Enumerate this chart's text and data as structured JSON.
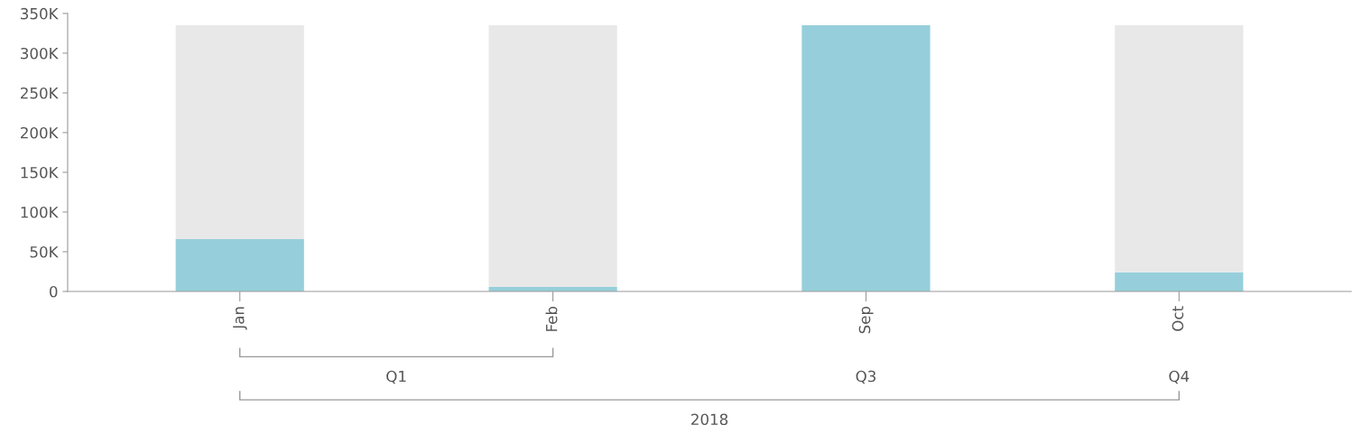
{
  "chart_data": {
    "type": "bar",
    "stacked": true,
    "categories": [
      "Jan",
      "Feb",
      "Sep",
      "Oct"
    ],
    "series": [
      {
        "color": "#96cfdb",
        "values": [
          66000,
          6000,
          335000,
          24000
        ]
      },
      {
        "color": "#e8e8e8",
        "values": [
          269000,
          329000,
          0,
          311000
        ]
      }
    ],
    "ylim": [
      0,
      350000
    ],
    "yticks": [
      {
        "value": 0,
        "label": "0"
      },
      {
        "value": 50000,
        "label": "50K"
      },
      {
        "value": 100000,
        "label": "100K"
      },
      {
        "value": 150000,
        "label": "150K"
      },
      {
        "value": 200000,
        "label": "200K"
      },
      {
        "value": 250000,
        "label": "250K"
      },
      {
        "value": 300000,
        "label": "300K"
      },
      {
        "value": 350000,
        "label": "350K"
      }
    ],
    "grid": false,
    "legend": false,
    "annotations": [
      "Q1",
      "Q3",
      "Q4",
      "2018"
    ]
  }
}
